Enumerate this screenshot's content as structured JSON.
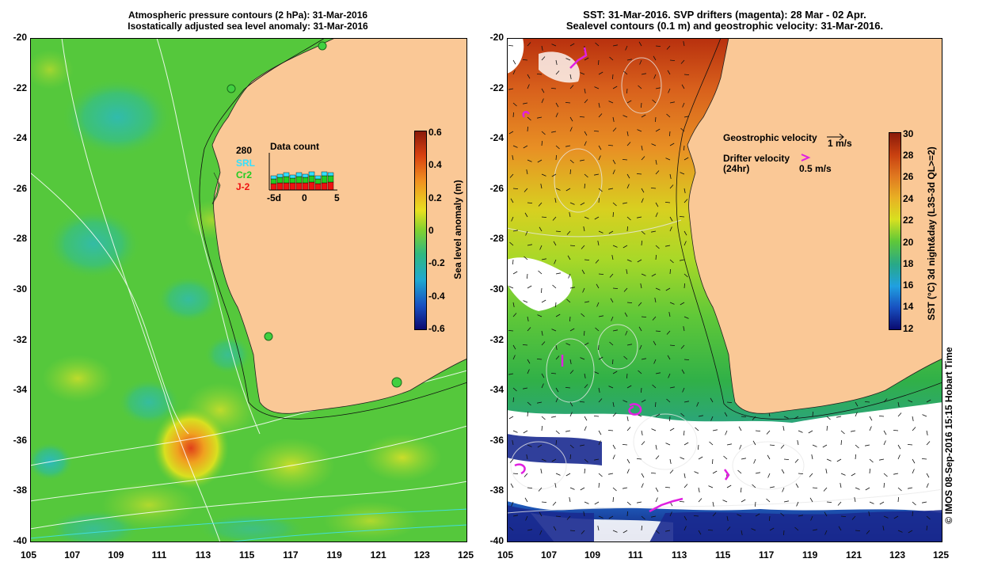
{
  "left_panel": {
    "title_line1": "Atmospheric pressure contours (2 hPa): 31-Mar-2016",
    "title_line2": "Isostatically adjusted sea level anomaly: 31-Mar-2016",
    "colorbar": {
      "label": "Sea level anomaly (m)",
      "ticks": [
        "0.6",
        "0.4",
        "0.2",
        "0",
        "-0.2",
        "-0.4",
        "-0.6"
      ]
    },
    "data_count": {
      "title": "Data count",
      "total": "280",
      "series": [
        {
          "name": "SRL",
          "color": "#33e0ff"
        },
        {
          "name": "Cr2",
          "color": "#22cc22"
        },
        {
          "name": "J-2",
          "color": "#ee1111"
        }
      ],
      "axis_labels": [
        "-5d",
        "0",
        "5"
      ]
    }
  },
  "right_panel": {
    "title_line1": "SST: 31-Mar-2016. SVP drifters (magenta): 28 Mar - 02 Apr.",
    "title_line2": "Sealevel contours (0.1 m) and geostrophic velocity: 31-Mar-2016.",
    "legend": {
      "geo_label": "Geostrophic velocity",
      "geo_scale": "1 m/s",
      "drifter_label": "Drifter velocity",
      "drifter_sub": "(24hr)",
      "drifter_scale": "0.5 m/s"
    },
    "colorbar": {
      "label": "SST (°C) 3d night&day (L3S-3d QL>=2)",
      "ticks": [
        "30",
        "28",
        "26",
        "24",
        "22",
        "20",
        "18",
        "16",
        "14",
        "12"
      ]
    }
  },
  "axes": {
    "lat_ticks": [
      "-20",
      "-22",
      "-24",
      "-26",
      "-28",
      "-30",
      "-32",
      "-34",
      "-36",
      "-38",
      "-40"
    ],
    "lon_ticks": [
      "105",
      "107",
      "109",
      "111",
      "113",
      "115",
      "117",
      "119",
      "121",
      "123",
      "125"
    ]
  },
  "credit": "© IMOS 08-Sep-2016 15:15 Hobart Time",
  "colors": {
    "land": "#fac896",
    "sla_base": "#55c83c",
    "sst_warm": "#d2641e",
    "sst_cool": "#3cb43c"
  }
}
